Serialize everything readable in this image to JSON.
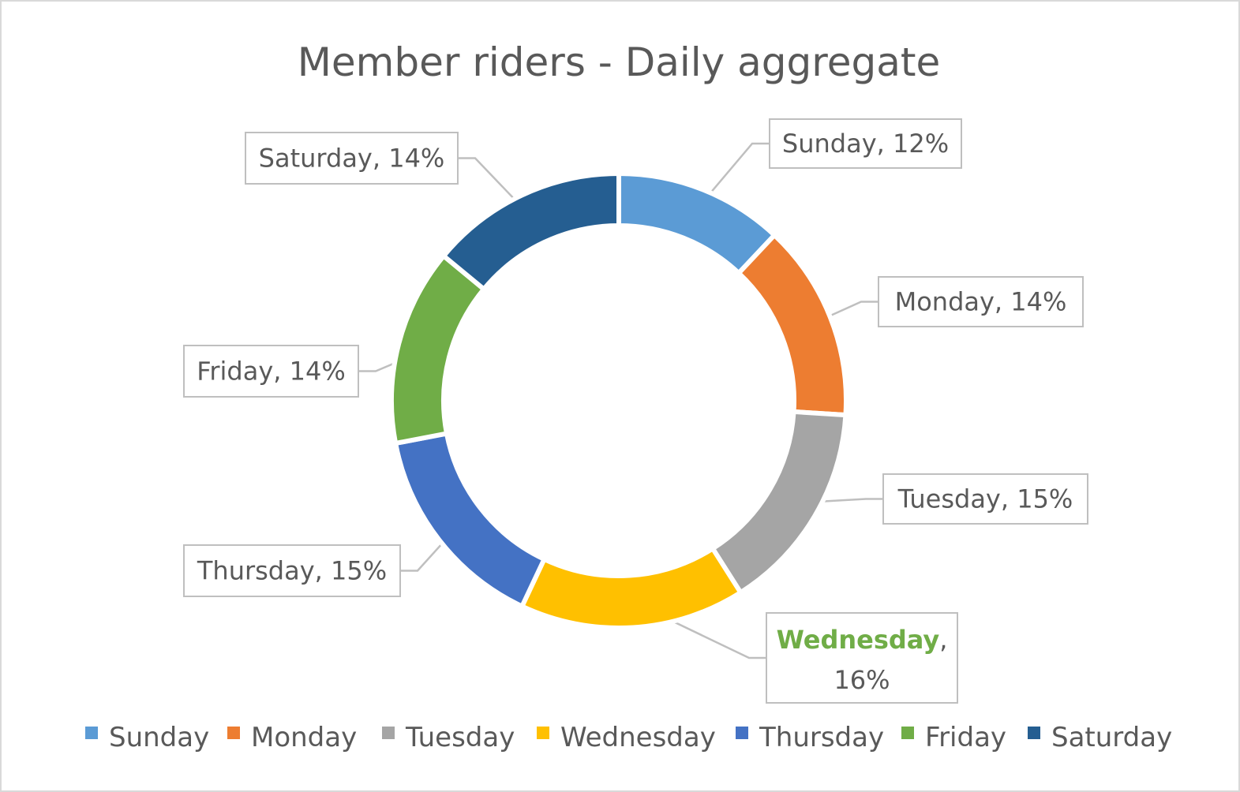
{
  "chart_data": {
    "type": "pie",
    "subtype": "doughnut",
    "title": "Member riders - Daily aggregate",
    "categories": [
      "Sunday",
      "Monday",
      "Tuesday",
      "Wednesday",
      "Thursday",
      "Friday",
      "Saturday"
    ],
    "values": [
      12,
      14,
      15,
      16,
      15,
      14,
      14
    ],
    "value_unit": "%",
    "data_labels": [
      {
        "category": "Sunday",
        "value": "12%"
      },
      {
        "category": "Monday",
        "value": "14%"
      },
      {
        "category": "Tuesday",
        "value": "15%"
      },
      {
        "category": "Wednesday",
        "value": "16%",
        "category_color": "#70ad47",
        "category_bold": true
      },
      {
        "category": "Thursday",
        "value": "15%"
      },
      {
        "category": "Friday",
        "value": "14%"
      },
      {
        "category": "Saturday",
        "value": "14%"
      }
    ],
    "colors": [
      "#5b9bd5",
      "#ed7d31",
      "#a5a5a5",
      "#ffc000",
      "#4472c4",
      "#70ad47",
      "#255e91"
    ],
    "legend_position": "bottom",
    "start_angle": "12 o'clock, clockwise"
  }
}
